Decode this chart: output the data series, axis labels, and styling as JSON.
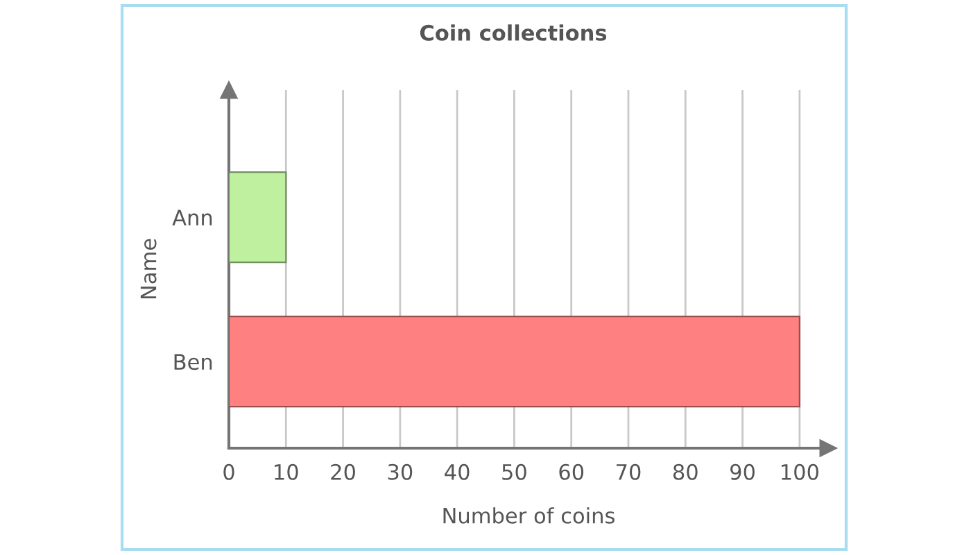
{
  "chart_data": {
    "type": "bar",
    "orientation": "horizontal",
    "title": "Coin collections",
    "xlabel": "Number of coins",
    "ylabel": "Name",
    "categories": [
      "Ann",
      "Ben"
    ],
    "values": [
      10,
      100
    ],
    "colors": [
      "#bef0a0",
      "#ff8080"
    ],
    "xlim": [
      0,
      105
    ],
    "xticks": [
      0,
      10,
      20,
      30,
      40,
      50,
      60,
      70,
      80,
      90,
      100
    ],
    "grid": "x"
  }
}
